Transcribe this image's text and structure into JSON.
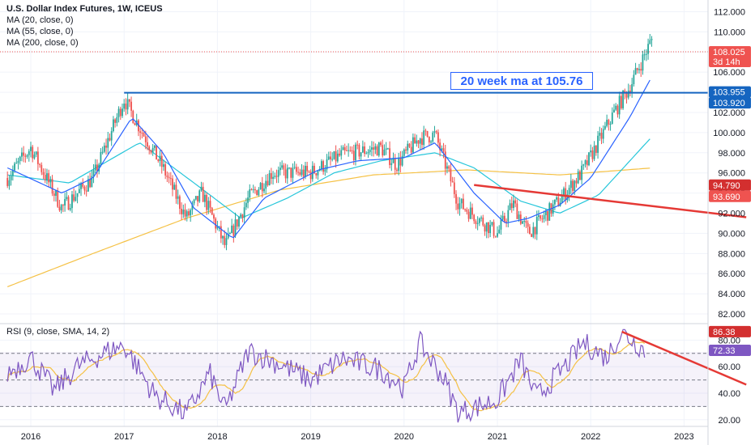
{
  "legend": {
    "title": "U.S. Dollar Index Futures, 1W, ICEUS",
    "ma20": "MA (20, close, 0)",
    "ma55": "MA (55, close, 0)",
    "ma200": "MA (200, close, 0)"
  },
  "rsi_legend": "RSI (9, close, SMA, 14, 2)",
  "annotation": "20 week ma at 105.76",
  "price_badges": {
    "last": "108.025",
    "countdown": "3d 14h",
    "level_a": "103.955",
    "level_b": "103.920",
    "level_c": "94.790",
    "level_d": "93.690"
  },
  "rsi_badges": {
    "a": "86.38",
    "b": "72.33"
  },
  "colors": {
    "up": "#ef5350",
    "down": "#26a69a",
    "ma20": "#2962ff",
    "ma55": "#26c6da",
    "ma200": "#f5c144",
    "rsi": "#7e57c2",
    "rsi_ma": "#f5c144",
    "hline": "#1565c0",
    "trend": "#e53935"
  },
  "chart_data": [
    {
      "type": "candlestick",
      "x_ticks": [
        "2016",
        "2017",
        "2018",
        "2019",
        "2020",
        "2021",
        "2022",
        "2023"
      ],
      "y_ticks": [
        "82.000",
        "84.000",
        "86.000",
        "88.000",
        "90.000",
        "92.000",
        "94.000",
        "96.000",
        "98.000",
        "100.000",
        "102.000",
        "104.000",
        "106.000",
        "108.000",
        "110.000",
        "112.000"
      ],
      "ylim": [
        81.2,
        113
      ],
      "anchors": [
        [
          "2015-10",
          95.5
        ],
        [
          "2016-01",
          98.5
        ],
        [
          "2016-05",
          92.5
        ],
        [
          "2016-09",
          95.5
        ],
        [
          "2017-01",
          103.3
        ],
        [
          "2017-03",
          100.5
        ],
        [
          "2017-06",
          96.5
        ],
        [
          "2017-09",
          91.5
        ],
        [
          "2017-11",
          94.0
        ],
        [
          "2018-02",
          88.7
        ],
        [
          "2018-05",
          93.5
        ],
        [
          "2018-08",
          96.0
        ],
        [
          "2019-01",
          96.0
        ],
        [
          "2019-05",
          97.8
        ],
        [
          "2019-10",
          98.5
        ],
        [
          "2019-12",
          96.8
        ],
        [
          "2020-03",
          99.5
        ],
        [
          "2020-05",
          99.8
        ],
        [
          "2020-08",
          93.0
        ],
        [
          "2021-01",
          90.0
        ],
        [
          "2021-03",
          93.0
        ],
        [
          "2021-05",
          90.0
        ],
        [
          "2021-09",
          93.3
        ],
        [
          "2021-12",
          96.2
        ],
        [
          "2022-04",
          102.0
        ],
        [
          "2022-06",
          104.5
        ],
        [
          "2022-09",
          109.5
        ]
      ],
      "ma20_path": [
        [
          "2015-10",
          96.5
        ],
        [
          "2016-05",
          94.0
        ],
        [
          "2016-09",
          95.5
        ],
        [
          "2017-02",
          101.5
        ],
        [
          "2017-06",
          98.0
        ],
        [
          "2017-10",
          92.5
        ],
        [
          "2018-03",
          89.5
        ],
        [
          "2018-07",
          93.5
        ],
        [
          "2019-02",
          96.3
        ],
        [
          "2019-07",
          97.2
        ],
        [
          "2020-01",
          97.5
        ],
        [
          "2020-05",
          99.0
        ],
        [
          "2020-10",
          94.0
        ],
        [
          "2021-02",
          91.0
        ],
        [
          "2021-05",
          91.5
        ],
        [
          "2021-09",
          92.8
        ],
        [
          "2022-01",
          95.5
        ],
        [
          "2022-06",
          101.5
        ],
        [
          "2022-09",
          105.76
        ]
      ],
      "ma55_path": [
        [
          "2015-10",
          95.8
        ],
        [
          "2016-06",
          95.0
        ],
        [
          "2017-03",
          99.0
        ],
        [
          "2017-10",
          95.0
        ],
        [
          "2018-04",
          91.5
        ],
        [
          "2018-10",
          93.5
        ],
        [
          "2019-04",
          96.0
        ],
        [
          "2019-10",
          97.2
        ],
        [
          "2020-05",
          98.0
        ],
        [
          "2020-10",
          96.5
        ],
        [
          "2021-04",
          93.2
        ],
        [
          "2021-09",
          92.0
        ],
        [
          "2022-02",
          93.8
        ],
        [
          "2022-09",
          99.7
        ]
      ],
      "ma200_path": [
        [
          "2015-10",
          84.7
        ],
        [
          "2016-09",
          88.0
        ],
        [
          "2017-09",
          91.5
        ],
        [
          "2018-09",
          94.3
        ],
        [
          "2019-09",
          95.8
        ],
        [
          "2020-09",
          96.3
        ],
        [
          "2021-09",
          95.8
        ],
        [
          "2022-09",
          96.5
        ]
      ],
      "hline": {
        "value": 103.955,
        "from": "2017-01"
      },
      "last_price": 108.025,
      "trendline": [
        [
          "2020-10",
          94.8
        ],
        [
          "2023-09",
          91.6
        ]
      ]
    },
    {
      "type": "line",
      "indicator": "RSI",
      "y_ticks": [
        "20.00",
        "40.00",
        "60.00",
        "80.00"
      ],
      "ylim": [
        15,
        90
      ],
      "levels": [
        70,
        50,
        30
      ],
      "anchors": [
        [
          "2015-10",
          55
        ],
        [
          "2016-01",
          67
        ],
        [
          "2016-04",
          42
        ],
        [
          "2016-07",
          60
        ],
        [
          "2016-11",
          72
        ],
        [
          "2017-01",
          76
        ],
        [
          "2017-05",
          38
        ],
        [
          "2017-09",
          24
        ],
        [
          "2017-12",
          55
        ],
        [
          "2018-02",
          27
        ],
        [
          "2018-05",
          72
        ],
        [
          "2018-09",
          62
        ],
        [
          "2019-01",
          50
        ],
        [
          "2019-05",
          66
        ],
        [
          "2019-10",
          58
        ],
        [
          "2020-01",
          44
        ],
        [
          "2020-03",
          78
        ],
        [
          "2020-06",
          52
        ],
        [
          "2020-08",
          25
        ],
        [
          "2021-01",
          35
        ],
        [
          "2021-04",
          65
        ],
        [
          "2021-06",
          37
        ],
        [
          "2021-10",
          62
        ],
        [
          "2021-12",
          78
        ],
        [
          "2022-03",
          67
        ],
        [
          "2022-05",
          86.38
        ],
        [
          "2022-08",
          72.33
        ]
      ],
      "trendline": [
        [
          "2022-05",
          86.38
        ],
        [
          "2023-09",
          46.5
        ]
      ]
    }
  ]
}
